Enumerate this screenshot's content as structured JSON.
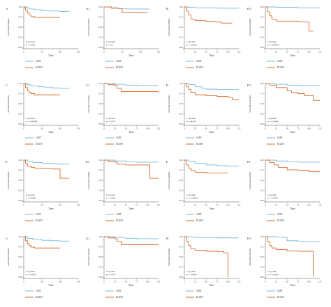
{
  "colors": {
    "gist": "#79b7de",
    "egist": "#d9682a",
    "axis": "#555555",
    "text": "#333333"
  },
  "chart_data": [
    {
      "type": "line",
      "panel_label": "A",
      "ylabel": "Survival probability",
      "xlabel": "Time",
      "xticks": [
        "0",
        "50",
        "100",
        "150"
      ],
      "xlim": [
        0,
        150
      ],
      "ylim": [
        0,
        1
      ],
      "yticks": [
        "0.00",
        "0.25",
        "0.50",
        "0.75",
        "1.00"
      ],
      "annotation_test": "Log-rank",
      "annotation_p": "p = 0.002",
      "series": [
        {
          "name": "GIST",
          "x": [
            0,
            10,
            20,
            30,
            50,
            70,
            100,
            125
          ],
          "y": [
            1,
            0.97,
            0.95,
            0.93,
            0.91,
            0.9,
            0.89,
            0.89
          ]
        },
        {
          "name": "EGIST",
          "x": [
            0,
            5,
            10,
            15,
            20,
            30,
            100
          ],
          "y": [
            1,
            0.92,
            0.85,
            0.8,
            0.76,
            0.74,
            0.74
          ]
        }
      ]
    },
    {
      "type": "line",
      "panel_label": "A1",
      "ylabel": "Survival probability",
      "xlabel": "Time",
      "xticks": [
        "0",
        "50",
        "100",
        "150"
      ],
      "xlim": [
        0,
        150
      ],
      "ylim": [
        0,
        1
      ],
      "yticks": [
        "0.00",
        "0.25",
        "0.50",
        "0.75",
        "1.00"
      ],
      "annotation_test": "Log-rank",
      "annotation_p": "p = 0.3",
      "series": [
        {
          "name": "GIST",
          "x": [
            0,
            20,
            40,
            60,
            80,
            100,
            125
          ],
          "y": [
            1,
            0.98,
            0.96,
            0.95,
            0.95,
            0.95,
            0.95
          ]
        },
        {
          "name": "EGIST",
          "x": [
            0,
            20,
            40,
            50,
            80,
            120
          ],
          "y": [
            1,
            0.97,
            0.96,
            0.87,
            0.86,
            0.86
          ]
        }
      ]
    },
    {
      "type": "line",
      "panel_label": "B",
      "ylabel": "Survival probability",
      "xlabel": "Time",
      "xticks": [
        "0",
        "25",
        "50",
        "75",
        "100",
        "125"
      ],
      "xlim": [
        0,
        125
      ],
      "ylim": [
        0,
        1
      ],
      "yticks": [
        "0.00",
        "0.25",
        "0.50",
        "0.75",
        "1.00"
      ],
      "annotation_test": "Log-rank",
      "annotation_p": "p = 0.0001",
      "series": [
        {
          "name": "GIST",
          "x": [
            0,
            10,
            25,
            50,
            75,
            100,
            125
          ],
          "y": [
            1,
            0.99,
            0.98,
            0.98,
            0.97,
            0.97,
            0.97
          ]
        },
        {
          "name": "EGIST",
          "x": [
            0,
            5,
            10,
            15,
            25,
            50,
            75,
            85,
            100,
            110
          ],
          "y": [
            1,
            0.9,
            0.8,
            0.7,
            0.66,
            0.64,
            0.63,
            0.6,
            0.6,
            0.6
          ]
        }
      ]
    },
    {
      "type": "line",
      "panel_label": "B1",
      "ylabel": "Survival probability",
      "xlabel": "Time",
      "xticks": [
        "0",
        "25",
        "50",
        "75",
        "100",
        "125"
      ],
      "xlim": [
        0,
        125
      ],
      "ylim": [
        0,
        1
      ],
      "yticks": [
        "0.00",
        "0.25",
        "0.50",
        "0.75",
        "1.00"
      ],
      "annotation_test": "Log-rank",
      "annotation_p": "p = 0.00053",
      "series": [
        {
          "name": "GIST",
          "x": [
            0,
            25,
            50,
            75,
            100,
            125
          ],
          "y": [
            1,
            0.99,
            0.99,
            0.98,
            0.98,
            0.98
          ]
        },
        {
          "name": "EGIST",
          "x": [
            0,
            5,
            10,
            15,
            25,
            75,
            100,
            110
          ],
          "y": [
            1,
            0.88,
            0.78,
            0.7,
            0.65,
            0.63,
            0.4,
            0.4
          ]
        }
      ]
    },
    {
      "type": "line",
      "panel_label": "C",
      "ylabel": "Survival probability",
      "xlabel": "Time",
      "xticks": [
        "0",
        "50",
        "100",
        "150"
      ],
      "xlim": [
        0,
        150
      ],
      "ylim": [
        0,
        1
      ],
      "yticks": [
        "0.00",
        "0.25",
        "0.50",
        "0.75",
        "1.00"
      ],
      "annotation_test": "Log-rank",
      "annotation_p": "p = 0.00081",
      "series": [
        {
          "name": "GIST",
          "x": [
            0,
            10,
            20,
            40,
            60,
            80,
            100,
            125
          ],
          "y": [
            1,
            0.97,
            0.94,
            0.92,
            0.9,
            0.89,
            0.88,
            0.88
          ]
        },
        {
          "name": "EGIST",
          "x": [
            0,
            5,
            10,
            15,
            20,
            30,
            100
          ],
          "y": [
            1,
            0.9,
            0.83,
            0.78,
            0.75,
            0.72,
            0.72
          ]
        }
      ]
    },
    {
      "type": "line",
      "panel_label": "C1",
      "ylabel": "Survival probability",
      "xlabel": "Time",
      "xticks": [
        "0",
        "25",
        "50",
        "75",
        "100",
        "125"
      ],
      "xlim": [
        0,
        125
      ],
      "ylim": [
        0,
        1
      ],
      "yticks": [
        "0.00",
        "0.25",
        "0.50",
        "0.75",
        "1.00"
      ],
      "annotation_test": "Log-rank",
      "annotation_p": "p = 0.073",
      "series": [
        {
          "name": "GIST",
          "x": [
            0,
            25,
            50,
            75,
            100,
            125
          ],
          "y": [
            1,
            0.98,
            0.96,
            0.95,
            0.95,
            0.95
          ]
        },
        {
          "name": "EGIST",
          "x": [
            0,
            10,
            25,
            30,
            40,
            70,
            100,
            125
          ],
          "y": [
            1,
            0.97,
            0.95,
            0.88,
            0.8,
            0.8,
            0.8,
            0.8
          ]
        }
      ]
    },
    {
      "type": "line",
      "panel_label": "D",
      "ylabel": "Survival probability",
      "xlabel": "Time",
      "xticks": [
        "0",
        "25",
        "50",
        "75",
        "100",
        "125"
      ],
      "xlim": [
        0,
        125
      ],
      "ylim": [
        0,
        1
      ],
      "yticks": [
        "0.00",
        "0.25",
        "0.50",
        "0.75",
        "1.00"
      ],
      "annotation_test": "Log-rank",
      "annotation_p": "p = 8e-04",
      "series": [
        {
          "name": "GIST",
          "x": [
            0,
            10,
            25,
            40,
            50,
            75,
            100,
            125
          ],
          "y": [
            1,
            0.97,
            0.92,
            0.88,
            0.86,
            0.85,
            0.85,
            0.85
          ]
        },
        {
          "name": "EGIST",
          "x": [
            0,
            5,
            10,
            15,
            25,
            50,
            75,
            100,
            110,
            125
          ],
          "y": [
            1,
            0.92,
            0.85,
            0.78,
            0.72,
            0.7,
            0.68,
            0.66,
            0.6,
            0.6
          ]
        }
      ]
    },
    {
      "type": "line",
      "panel_label": "D1",
      "ylabel": "Survival probability",
      "xlabel": "Time",
      "xticks": [
        "0",
        "25",
        "50",
        "75",
        "100",
        "125"
      ],
      "xlim": [
        0,
        125
      ],
      "ylim": [
        0,
        1
      ],
      "yticks": [
        "0.00",
        "0.25",
        "0.50",
        "0.75",
        "1.00"
      ],
      "annotation_test": "Log-rank",
      "annotation_p": "p = 0.0048",
      "series": [
        {
          "name": "GIST",
          "x": [
            0,
            25,
            50,
            75,
            100,
            125
          ],
          "y": [
            1,
            0.98,
            0.96,
            0.95,
            0.95,
            0.95
          ]
        },
        {
          "name": "EGIST",
          "x": [
            0,
            10,
            25,
            50,
            60,
            75,
            90,
            110,
            125
          ],
          "y": [
            1,
            0.96,
            0.9,
            0.82,
            0.78,
            0.75,
            0.7,
            0.58,
            0.58
          ]
        }
      ]
    },
    {
      "type": "line",
      "panel_label": "E",
      "ylabel": "Survival probability",
      "xlabel": "Time",
      "xticks": [
        "0",
        "50",
        "100",
        "150"
      ],
      "xlim": [
        0,
        150
      ],
      "ylim": [
        0,
        1
      ],
      "yticks": [
        "0.00",
        "0.25",
        "0.50",
        "0.75",
        "1.00"
      ],
      "annotation_test": "Log-rank",
      "annotation_p": "p = 0.0064",
      "series": [
        {
          "name": "GIST",
          "x": [
            0,
            10,
            25,
            50,
            75,
            100,
            125
          ],
          "y": [
            1,
            0.97,
            0.94,
            0.92,
            0.91,
            0.9,
            0.9
          ]
        },
        {
          "name": "EGIST",
          "x": [
            0,
            5,
            10,
            20,
            30,
            50,
            80,
            100,
            125
          ],
          "y": [
            1,
            0.92,
            0.85,
            0.82,
            0.8,
            0.79,
            0.78,
            0.55,
            0.55
          ]
        }
      ]
    },
    {
      "type": "line",
      "panel_label": "E1",
      "ylabel": "Survival probability",
      "xlabel": "Time",
      "xticks": [
        "0",
        "25",
        "50",
        "75",
        "100",
        "125"
      ],
      "xlim": [
        0,
        125
      ],
      "ylim": [
        0,
        1
      ],
      "yticks": [
        "0.00",
        "0.25",
        "0.50",
        "0.75",
        "1.00"
      ],
      "annotation_test": "Log-rank",
      "annotation_p": "p = 0.081",
      "series": [
        {
          "name": "GIST",
          "x": [
            0,
            25,
            50,
            75,
            100,
            125
          ],
          "y": [
            1,
            0.98,
            0.96,
            0.95,
            0.95,
            0.95
          ]
        },
        {
          "name": "EGIST",
          "x": [
            0,
            10,
            25,
            30,
            50,
            75,
            100,
            105,
            125
          ],
          "y": [
            1,
            0.97,
            0.95,
            0.9,
            0.88,
            0.88,
            0.88,
            0.55,
            0.55
          ]
        }
      ]
    },
    {
      "type": "line",
      "panel_label": "F",
      "ylabel": "Survival probability",
      "xlabel": "Time",
      "xticks": [
        "0",
        "25",
        "50",
        "75",
        "100",
        "125"
      ],
      "xlim": [
        0,
        125
      ],
      "ylim": [
        0,
        1
      ],
      "yticks": [
        "0.00",
        "0.25",
        "0.50",
        "0.75",
        "1.00"
      ],
      "annotation_test": "Log-rank",
      "annotation_p": "p = 0.00022",
      "series": [
        {
          "name": "GIST",
          "x": [
            0,
            10,
            25,
            50,
            75,
            100,
            125
          ],
          "y": [
            1,
            0.97,
            0.92,
            0.88,
            0.86,
            0.85,
            0.85
          ]
        },
        {
          "name": "EGIST",
          "x": [
            0,
            5,
            10,
            15,
            25,
            50,
            75,
            100
          ],
          "y": [
            1,
            0.88,
            0.8,
            0.74,
            0.7,
            0.68,
            0.68,
            0.68
          ]
        }
      ]
    },
    {
      "type": "line",
      "panel_label": "F1",
      "ylabel": "Survival probability",
      "xlabel": "Time",
      "xticks": [
        "0",
        "25",
        "50",
        "75",
        "100",
        "125"
      ],
      "xlim": [
        0,
        125
      ],
      "ylim": [
        0,
        1
      ],
      "yticks": [
        "0.00",
        "0.25",
        "0.50",
        "0.75",
        "1.00"
      ],
      "annotation_test": "Log-rank",
      "annotation_p": "p = 0.0037",
      "series": [
        {
          "name": "GIST",
          "x": [
            0,
            25,
            50,
            75,
            100,
            125
          ],
          "y": [
            1,
            0.98,
            0.96,
            0.95,
            0.95,
            0.95
          ]
        },
        {
          "name": "EGIST",
          "x": [
            0,
            10,
            20,
            30,
            50,
            75,
            100,
            110,
            125
          ],
          "y": [
            1,
            0.94,
            0.88,
            0.82,
            0.76,
            0.75,
            0.72,
            0.72,
            0.72
          ]
        }
      ]
    },
    {
      "type": "line",
      "panel_label": "G",
      "ylabel": "Survival probability",
      "xlabel": "Time",
      "xticks": [
        "0",
        "50",
        "100",
        "150"
      ],
      "xlim": [
        0,
        150
      ],
      "ylim": [
        0,
        1
      ],
      "yticks": [
        "0.00",
        "0.25",
        "0.50",
        "0.75",
        "1.00"
      ],
      "annotation_test": "Log-rank",
      "annotation_p": "p = 0.0001",
      "series": [
        {
          "name": "GIST",
          "x": [
            0,
            10,
            25,
            50,
            75,
            100,
            125
          ],
          "y": [
            1,
            0.96,
            0.93,
            0.91,
            0.9,
            0.89,
            0.89
          ]
        },
        {
          "name": "EGIST",
          "x": [
            0,
            5,
            10,
            15,
            20,
            30,
            100
          ],
          "y": [
            1,
            0.9,
            0.83,
            0.78,
            0.74,
            0.72,
            0.72
          ]
        }
      ]
    },
    {
      "type": "line",
      "panel_label": "G1",
      "ylabel": "Survival probability",
      "xlabel": "Time",
      "xticks": [
        "0",
        "25",
        "50",
        "75",
        "100",
        "125"
      ],
      "xlim": [
        0,
        125
      ],
      "ylim": [
        0,
        1
      ],
      "yticks": [
        "0.00",
        "0.25",
        "0.50",
        "0.75",
        "1.00"
      ],
      "annotation_test": "Log-rank",
      "annotation_p": "p = 0.073",
      "series": [
        {
          "name": "GIST",
          "x": [
            0,
            25,
            50,
            75,
            100,
            125
          ],
          "y": [
            1,
            0.98,
            0.96,
            0.95,
            0.95,
            0.95
          ]
        },
        {
          "name": "EGIST",
          "x": [
            0,
            10,
            25,
            30,
            40,
            70,
            100,
            125
          ],
          "y": [
            1,
            0.97,
            0.95,
            0.88,
            0.8,
            0.8,
            0.8,
            0.8
          ]
        }
      ]
    },
    {
      "type": "line",
      "panel_label": "H",
      "ylabel": "Survival probability",
      "xlabel": "Time",
      "xticks": [
        "0",
        "25",
        "50",
        "75",
        "100",
        "125"
      ],
      "xlim": [
        0,
        125
      ],
      "ylim": [
        0,
        1
      ],
      "yticks": [
        "0.00",
        "0.25",
        "0.50",
        "0.75",
        "1.00"
      ],
      "annotation_test": "Log-rank",
      "annotation_p": "p = 0.0001",
      "series": [
        {
          "name": "GIST",
          "x": [
            0,
            10,
            25,
            50,
            75,
            100,
            125
          ],
          "y": [
            1,
            0.99,
            0.98,
            0.98,
            0.97,
            0.97,
            0.97
          ]
        },
        {
          "name": "EGIST",
          "x": [
            0,
            5,
            10,
            15,
            25,
            50,
            75,
            90,
            100
          ],
          "y": [
            1,
            0.88,
            0.78,
            0.7,
            0.66,
            0.64,
            0.63,
            0.6,
            0.0
          ]
        }
      ]
    },
    {
      "type": "line",
      "panel_label": "H1",
      "ylabel": "Survival probability",
      "xlabel": "Time",
      "xticks": [
        "0",
        "25",
        "50",
        "75",
        "100",
        "125"
      ],
      "xlim": [
        0,
        125
      ],
      "ylim": [
        0,
        1
      ],
      "yticks": [
        "0.00",
        "0.25",
        "0.50",
        "0.75",
        "1.00"
      ],
      "annotation_test": "Log-rank",
      "annotation_p": "p = 0.0029",
      "series": [
        {
          "name": "GIST",
          "x": [
            0,
            25,
            40,
            50,
            75,
            100,
            125
          ],
          "y": [
            1,
            0.99,
            0.98,
            0.9,
            0.88,
            0.88,
            0.88
          ]
        },
        {
          "name": "EGIST",
          "x": [
            0,
            5,
            10,
            15,
            25,
            50,
            75,
            100,
            110
          ],
          "y": [
            1,
            0.88,
            0.78,
            0.72,
            0.68,
            0.65,
            0.64,
            0.64,
            0.0
          ]
        }
      ]
    }
  ]
}
